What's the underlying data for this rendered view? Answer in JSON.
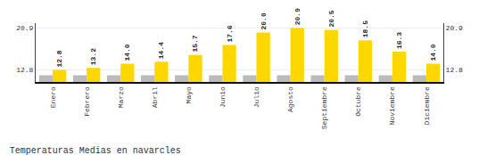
{
  "chart_data": {
    "type": "bar",
    "title": "Temperaturas Medias en navarcles",
    "categories": [
      "Enero",
      "Febrero",
      "Marzo",
      "Abril",
      "Mayo",
      "Junio",
      "Julio",
      "Agosto",
      "Septiembre",
      "Octubre",
      "Noviembre",
      "Diciembre"
    ],
    "series": [
      {
        "color": "#BBBBBB",
        "values": [
          11.8,
          11.8,
          11.8,
          11.8,
          11.8,
          11.8,
          11.8,
          11.8,
          11.8,
          11.8,
          11.8,
          11.8
        ]
      },
      {
        "color": "#FFD700",
        "values": [
          12.8,
          13.2,
          14.0,
          14.4,
          15.7,
          17.6,
          20.0,
          20.9,
          20.5,
          18.5,
          16.3,
          14.0
        ],
        "value_labels": [
          "12.8",
          "13.2",
          "14.0",
          "14.4",
          "15.7",
          "17.6",
          "20.0",
          "20.9",
          "20.5",
          "18.5",
          "16.3",
          "14.0"
        ],
        "data_labels": true
      }
    ],
    "ylim": [
      10.5,
      21.8
    ],
    "yticks": [
      12.8,
      20.9
    ],
    "y2lim": [
      10.5,
      21.8
    ],
    "y2ticks": [
      12.8,
      20.9
    ],
    "grid": true
  }
}
